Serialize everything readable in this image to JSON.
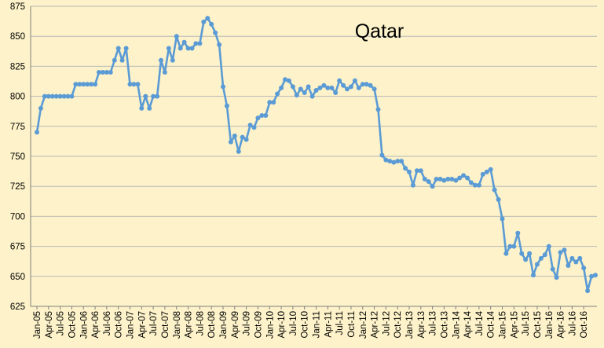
{
  "chart_data": {
    "type": "line",
    "title": "Qatar",
    "xlabel": "",
    "ylabel": "",
    "ylim": [
      625,
      875
    ],
    "y_ticks": [
      625,
      650,
      675,
      700,
      725,
      750,
      775,
      800,
      825,
      850,
      875
    ],
    "grid": true,
    "legend": "none",
    "x_tick_labels": [
      "Jan-05",
      "Apr-05",
      "Jul-05",
      "Oct-05",
      "Jan-06",
      "Apr-06",
      "Jul-06",
      "Oct-06",
      "Jan-07",
      "Apr-07",
      "Jul-07",
      "Oct-07",
      "Jan-08",
      "Apr-08",
      "Jul-08",
      "Oct-08",
      "Jan-09",
      "Apr-09",
      "Jul-09",
      "Oct-09",
      "Jan-10",
      "Apr-10",
      "Jul-10",
      "Oct-10",
      "Jan-11",
      "Apr-11",
      "Jul-11",
      "Oct-11",
      "Jan-12",
      "Apr-12",
      "Jul-12",
      "Oct-12",
      "Jan-13",
      "Apr-13",
      "Jul-13",
      "Oct-13",
      "Jan-14",
      "Apr-14",
      "Jul-14",
      "Oct-14",
      "Jan-15",
      "Apr-15",
      "Jul-15",
      "Oct-15",
      "Jan-16",
      "Apr-16",
      "Jul-16",
      "Oct-16"
    ],
    "series": [
      {
        "color": "#5b9bd5",
        "values": [
          770,
          790,
          800,
          800,
          800,
          800,
          800,
          800,
          800,
          800,
          810,
          810,
          810,
          810,
          810,
          810,
          820,
          820,
          820,
          820,
          830,
          840,
          830,
          840,
          810,
          810,
          810,
          790,
          800,
          790,
          800,
          800,
          830,
          820,
          840,
          830,
          850,
          840,
          845,
          840,
          840,
          844,
          844,
          862,
          865,
          860,
          853,
          843,
          808,
          792,
          762,
          767,
          754,
          766,
          764,
          776,
          774,
          782,
          784,
          784,
          795,
          795,
          802,
          807,
          814,
          813,
          808,
          801,
          806,
          803,
          808,
          800,
          805,
          807,
          809,
          807,
          807,
          803,
          813,
          809,
          806,
          808,
          813,
          807,
          810,
          810,
          809,
          806,
          789,
          751,
          747,
          746,
          745,
          746,
          746,
          740,
          737,
          726,
          738,
          738,
          731,
          729,
          725,
          731,
          731,
          730,
          731,
          731,
          730,
          732,
          734,
          732,
          728,
          726,
          726,
          735,
          737,
          739,
          722,
          714,
          698,
          669,
          675,
          675,
          686,
          669,
          664,
          669,
          651,
          660,
          665,
          668,
          675,
          656,
          649,
          670,
          672,
          659,
          665,
          662,
          665,
          657,
          638,
          650,
          651
        ]
      }
    ]
  }
}
